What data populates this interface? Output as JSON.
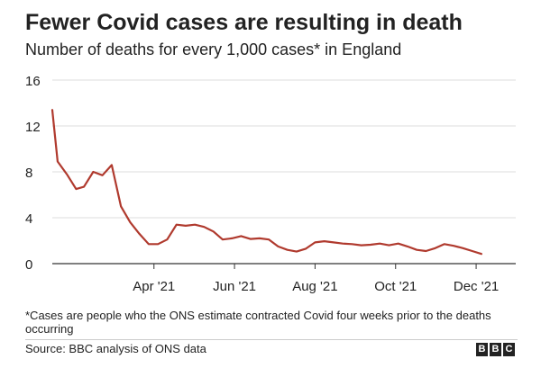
{
  "title": "Fewer Covid cases are resulting in death",
  "subtitle": "Number of deaths for every 1,000 cases* in England",
  "footnote": "*Cases are people who the ONS estimate contracted Covid four weeks prior to the deaths occurring",
  "source": "Source: BBC analysis of ONS data",
  "logo_letters": [
    "B",
    "B",
    "C"
  ],
  "colors": {
    "line": "#b03a2e",
    "grid": "#dddddd",
    "axis": "#333333",
    "text": "#222222"
  },
  "chart_data": {
    "type": "line",
    "title": "Fewer Covid cases are resulting in death",
    "subtitle": "Number of deaths for every 1,000 cases* in England",
    "xlabel": "",
    "ylabel": "",
    "ylim": [
      0,
      16
    ],
    "yticks": [
      0,
      4,
      8,
      12,
      16
    ],
    "xlim": [
      "2021-01-14",
      "2021-12-31"
    ],
    "xticks": [
      {
        "date": "2021-04-01",
        "label": "Apr '21"
      },
      {
        "date": "2021-06-01",
        "label": "Jun '21"
      },
      {
        "date": "2021-08-01",
        "label": "Aug '21"
      },
      {
        "date": "2021-10-01",
        "label": "Oct '21"
      },
      {
        "date": "2021-12-01",
        "label": "Dec '21"
      }
    ],
    "grid": true,
    "legend": "none",
    "series": [
      {
        "points": [
          [
            "2021-01-14",
            13.4
          ],
          [
            "2021-01-18",
            8.9
          ],
          [
            "2021-01-25",
            7.8
          ],
          [
            "2021-02-01",
            6.5
          ],
          [
            "2021-02-07",
            6.7
          ],
          [
            "2021-02-14",
            8.0
          ],
          [
            "2021-02-21",
            7.7
          ],
          [
            "2021-02-28",
            8.6
          ],
          [
            "2021-03-07",
            5.0
          ],
          [
            "2021-03-14",
            3.6
          ],
          [
            "2021-03-21",
            2.6
          ],
          [
            "2021-03-28",
            1.7
          ],
          [
            "2021-04-04",
            1.7
          ],
          [
            "2021-04-11",
            2.1
          ],
          [
            "2021-04-18",
            3.4
          ],
          [
            "2021-04-25",
            3.3
          ],
          [
            "2021-05-02",
            3.4
          ],
          [
            "2021-05-09",
            3.2
          ],
          [
            "2021-05-16",
            2.8
          ],
          [
            "2021-05-23",
            2.1
          ],
          [
            "2021-05-30",
            2.2
          ],
          [
            "2021-06-06",
            2.4
          ],
          [
            "2021-06-13",
            2.15
          ],
          [
            "2021-06-20",
            2.2
          ],
          [
            "2021-06-27",
            2.1
          ],
          [
            "2021-07-04",
            1.5
          ],
          [
            "2021-07-11",
            1.2
          ],
          [
            "2021-07-18",
            1.05
          ],
          [
            "2021-07-25",
            1.3
          ],
          [
            "2021-08-01",
            1.85
          ],
          [
            "2021-08-08",
            1.95
          ],
          [
            "2021-08-15",
            1.85
          ],
          [
            "2021-08-22",
            1.75
          ],
          [
            "2021-08-29",
            1.7
          ],
          [
            "2021-09-05",
            1.6
          ],
          [
            "2021-09-12",
            1.65
          ],
          [
            "2021-09-19",
            1.75
          ],
          [
            "2021-09-26",
            1.6
          ],
          [
            "2021-10-03",
            1.75
          ],
          [
            "2021-10-10",
            1.5
          ],
          [
            "2021-10-17",
            1.2
          ],
          [
            "2021-10-24",
            1.1
          ],
          [
            "2021-10-31",
            1.35
          ],
          [
            "2021-11-07",
            1.7
          ],
          [
            "2021-11-14",
            1.55
          ],
          [
            "2021-11-21",
            1.35
          ],
          [
            "2021-11-28",
            1.1
          ],
          [
            "2021-12-05",
            0.85
          ]
        ]
      }
    ]
  }
}
